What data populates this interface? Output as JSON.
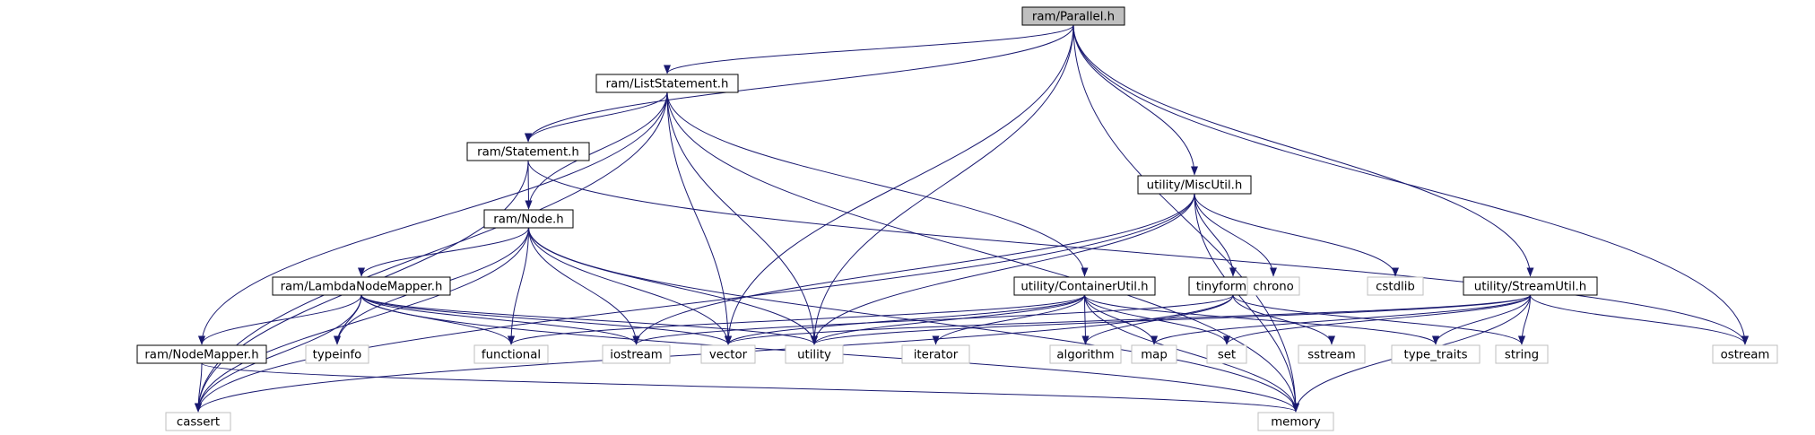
{
  "diagram": {
    "colors": {
      "edge": "#191970",
      "root_fill": "#bfbfbf",
      "node_border": "#000000",
      "external_border": "#bfbfbf",
      "text": "#000000"
    },
    "nodes": [
      {
        "id": "parallel",
        "label": "ram/Parallel.h",
        "kind": "root"
      },
      {
        "id": "liststatement",
        "label": "ram/ListStatement.h",
        "kind": "header"
      },
      {
        "id": "statement",
        "label": "ram/Statement.h",
        "kind": "header"
      },
      {
        "id": "node",
        "label": "ram/Node.h",
        "kind": "header"
      },
      {
        "id": "lambdanodemapper",
        "label": "ram/LambdaNodeMapper.h",
        "kind": "header"
      },
      {
        "id": "nodemapper",
        "label": "ram/NodeMapper.h",
        "kind": "header"
      },
      {
        "id": "miscutil",
        "label": "utility/MiscUtil.h",
        "kind": "header"
      },
      {
        "id": "containerutil",
        "label": "utility/ContainerUtil.h",
        "kind": "header"
      },
      {
        "id": "tinyformat",
        "label": "tinyformat.h",
        "kind": "header"
      },
      {
        "id": "streamutil",
        "label": "utility/StreamUtil.h",
        "kind": "header"
      },
      {
        "id": "cassert",
        "label": "cassert",
        "kind": "system"
      },
      {
        "id": "memory",
        "label": "memory",
        "kind": "system"
      },
      {
        "id": "typeinfo",
        "label": "typeinfo",
        "kind": "system"
      },
      {
        "id": "functional",
        "label": "functional",
        "kind": "system"
      },
      {
        "id": "iostream",
        "label": "iostream",
        "kind": "system"
      },
      {
        "id": "vector",
        "label": "vector",
        "kind": "system"
      },
      {
        "id": "utility",
        "label": "utility",
        "kind": "system"
      },
      {
        "id": "iterator",
        "label": "iterator",
        "kind": "system"
      },
      {
        "id": "algorithm",
        "label": "algorithm",
        "kind": "system"
      },
      {
        "id": "map",
        "label": "map",
        "kind": "system"
      },
      {
        "id": "set",
        "label": "set",
        "kind": "system"
      },
      {
        "id": "sstream",
        "label": "sstream",
        "kind": "system"
      },
      {
        "id": "type_traits",
        "label": "type_traits",
        "kind": "system"
      },
      {
        "id": "string",
        "label": "string",
        "kind": "system"
      },
      {
        "id": "ostream",
        "label": "ostream",
        "kind": "system"
      },
      {
        "id": "chrono",
        "label": "chrono",
        "kind": "system"
      },
      {
        "id": "cstdlib",
        "label": "cstdlib",
        "kind": "system"
      }
    ],
    "edges": [
      {
        "from": "parallel",
        "to": "liststatement"
      },
      {
        "from": "parallel",
        "to": "statement"
      },
      {
        "from": "parallel",
        "to": "vector"
      },
      {
        "from": "parallel",
        "to": "utility"
      },
      {
        "from": "parallel",
        "to": "miscutil"
      },
      {
        "from": "parallel",
        "to": "streamutil"
      },
      {
        "from": "parallel",
        "to": "ostream"
      },
      {
        "from": "parallel",
        "to": "memory"
      },
      {
        "from": "liststatement",
        "to": "statement"
      },
      {
        "from": "liststatement",
        "to": "node"
      },
      {
        "from": "liststatement",
        "to": "nodemapper"
      },
      {
        "from": "liststatement",
        "to": "cassert"
      },
      {
        "from": "liststatement",
        "to": "vector"
      },
      {
        "from": "liststatement",
        "to": "utility"
      },
      {
        "from": "liststatement",
        "to": "containerutil"
      },
      {
        "from": "liststatement",
        "to": "memory"
      },
      {
        "from": "statement",
        "to": "node"
      },
      {
        "from": "statement",
        "to": "cassert"
      },
      {
        "from": "statement",
        "to": "ostream"
      },
      {
        "from": "node",
        "to": "lambdanodemapper"
      },
      {
        "from": "node",
        "to": "typeinfo"
      },
      {
        "from": "node",
        "to": "functional"
      },
      {
        "from": "node",
        "to": "iostream"
      },
      {
        "from": "node",
        "to": "vector"
      },
      {
        "from": "node",
        "to": "utility"
      },
      {
        "from": "node",
        "to": "memory"
      },
      {
        "from": "node",
        "to": "cassert"
      },
      {
        "from": "lambdanodemapper",
        "to": "nodemapper"
      },
      {
        "from": "lambdanodemapper",
        "to": "typeinfo"
      },
      {
        "from": "lambdanodemapper",
        "to": "functional"
      },
      {
        "from": "lambdanodemapper",
        "to": "iostream"
      },
      {
        "from": "lambdanodemapper",
        "to": "vector"
      },
      {
        "from": "lambdanodemapper",
        "to": "utility"
      },
      {
        "from": "lambdanodemapper",
        "to": "cassert"
      },
      {
        "from": "lambdanodemapper",
        "to": "memory"
      },
      {
        "from": "nodemapper",
        "to": "cassert"
      },
      {
        "from": "nodemapper",
        "to": "memory"
      },
      {
        "from": "miscutil",
        "to": "tinyformat"
      },
      {
        "from": "miscutil",
        "to": "chrono"
      },
      {
        "from": "miscutil",
        "to": "cstdlib"
      },
      {
        "from": "miscutil",
        "to": "iostream"
      },
      {
        "from": "miscutil",
        "to": "utility"
      },
      {
        "from": "miscutil",
        "to": "cassert"
      },
      {
        "from": "miscutil",
        "to": "memory"
      },
      {
        "from": "containerutil",
        "to": "functional"
      },
      {
        "from": "containerutil",
        "to": "vector"
      },
      {
        "from": "containerutil",
        "to": "utility"
      },
      {
        "from": "containerutil",
        "to": "iterator"
      },
      {
        "from": "containerutil",
        "to": "algorithm"
      },
      {
        "from": "containerutil",
        "to": "map"
      },
      {
        "from": "containerutil",
        "to": "set"
      },
      {
        "from": "containerutil",
        "to": "type_traits"
      },
      {
        "from": "containerutil",
        "to": "memory"
      },
      {
        "from": "tinyformat",
        "to": "algorithm"
      },
      {
        "from": "tinyformat",
        "to": "sstream"
      },
      {
        "from": "tinyformat",
        "to": "string"
      },
      {
        "from": "tinyformat",
        "to": "cassert"
      },
      {
        "from": "tinyformat",
        "to": "iostream"
      },
      {
        "from": "streamutil",
        "to": "map"
      },
      {
        "from": "streamutil",
        "to": "set"
      },
      {
        "from": "streamutil",
        "to": "type_traits"
      },
      {
        "from": "streamutil",
        "to": "string"
      },
      {
        "from": "streamutil",
        "to": "ostream"
      },
      {
        "from": "streamutil",
        "to": "vector"
      },
      {
        "from": "streamutil",
        "to": "utility"
      },
      {
        "from": "streamutil",
        "to": "memory"
      }
    ]
  }
}
